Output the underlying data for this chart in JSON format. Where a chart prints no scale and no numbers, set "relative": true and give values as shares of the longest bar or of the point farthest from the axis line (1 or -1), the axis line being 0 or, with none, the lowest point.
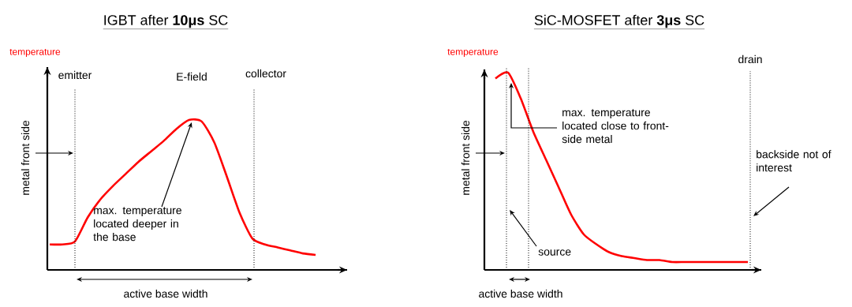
{
  "chart_data": [
    {
      "type": "line",
      "title": "IGBT after **10μs** SC",
      "ylabel": "temperature",
      "relative": true,
      "categories": [
        null,
        null,
        null,
        null,
        null,
        null,
        null,
        null,
        null,
        null,
        null,
        null,
        null,
        null,
        null,
        null,
        null,
        null,
        null,
        null,
        null,
        null
      ],
      "series": [
        {
          "color": "#ff0000",
          "values": [
            0.17,
            0.17,
            0.19,
            0.35,
            0.47,
            0.56,
            0.64,
            0.72,
            0.79,
            0.86,
            0.94,
            1.0,
            0.99,
            0.85,
            0.62,
            0.38,
            0.21,
            0.17,
            0.15,
            0.13,
            0.11,
            0.1
          ]
        }
      ],
      "annotations": [
        "emitter",
        "E-field",
        "collector",
        "max. temperature located deeper in the base",
        "metal front side",
        "active base width"
      ]
    },
    {
      "type": "line",
      "title": "SiC-MOSFET after **3μs** SC",
      "ylabel": "temperature",
      "relative": true,
      "categories": [
        null,
        null,
        null,
        null,
        null,
        null,
        null,
        null,
        null,
        null,
        null,
        null,
        null,
        null,
        null,
        null,
        null,
        null,
        null,
        null,
        null
      ],
      "series": [
        {
          "color": "#ff0000",
          "values": [
            0.97,
            1.0,
            0.87,
            0.7,
            0.56,
            0.42,
            0.28,
            0.18,
            0.13,
            0.09,
            0.07,
            0.06,
            0.05,
            0.05,
            0.04,
            0.04,
            0.04,
            0.04,
            0.04,
            0.04,
            0.04
          ]
        }
      ],
      "annotations": [
        "drain",
        "max. temperature located close to front-side metal",
        "source",
        "backside not of interest",
        "metal front side",
        "active base width"
      ]
    }
  ]
}
